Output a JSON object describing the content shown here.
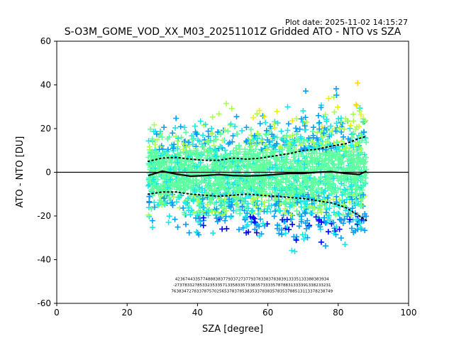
{
  "header": {
    "plot_date": "Plot date: 2025-11-02 14:15:27",
    "title": "S-O3M_GOME_VOD_XX_M03_20251101Z Gridded ATO - NTO vs SZA"
  },
  "chart_data": {
    "type": "scatter",
    "title": "S-O3M_GOME_VOD_XX_M03_20251101Z Gridded ATO - NTO vs SZA",
    "xlabel": "SZA [degree]",
    "ylabel": "ATO - NTO [DU]",
    "xlim": [
      0,
      100
    ],
    "ylim": [
      -60,
      60
    ],
    "xticks": [
      0,
      20,
      40,
      60,
      80,
      100
    ],
    "yticks": [
      -60,
      -40,
      -20,
      0,
      20,
      40,
      60
    ],
    "zero_line": 0,
    "sza_range": [
      26,
      88
    ],
    "colors": [
      "#0000ff",
      "#0a9cf0",
      "#19e6e6",
      "#5effa0",
      "#a8ff50",
      "#f0f000",
      "#ffd700"
    ],
    "series": [
      {
        "name": "median",
        "style": "solid",
        "x": [
          26,
          30,
          34,
          38,
          42,
          46,
          50,
          54,
          58,
          62,
          66,
          70,
          74,
          78,
          82,
          86,
          88
        ],
        "y": [
          -1.5,
          0.5,
          -0.8,
          -1.8,
          -1.5,
          -1.0,
          -1.5,
          -1.7,
          -1.5,
          -1.0,
          -0.5,
          -0.5,
          0,
          0.3,
          -0.5,
          -1.0,
          0.5
        ]
      },
      {
        "name": "upper",
        "style": "dotted",
        "x": [
          26,
          30,
          34,
          38,
          42,
          46,
          50,
          54,
          58,
          62,
          66,
          70,
          74,
          78,
          82,
          86,
          88
        ],
        "y": [
          5.0,
          6.5,
          6.8,
          6.0,
          5.5,
          5.5,
          6.5,
          6.0,
          6.5,
          7.5,
          8.5,
          10.0,
          10.5,
          12.0,
          13.0,
          15.5,
          16.5
        ]
      },
      {
        "name": "lower",
        "style": "dotted",
        "x": [
          26,
          30,
          34,
          38,
          42,
          46,
          50,
          54,
          58,
          62,
          66,
          70,
          74,
          78,
          82,
          86,
          88
        ],
        "y": [
          -10.0,
          -9.0,
          -9.0,
          -10.0,
          -10.5,
          -11.0,
          -10.5,
          -10.0,
          -10.5,
          -11.0,
          -11.5,
          -12.0,
          -13.0,
          -14.0,
          -16.0,
          -20.0,
          -22.0
        ]
      }
    ],
    "annotations": [
      "4236744335774888383779337273779378338378383913335133388383934",
      "-27378332785332353357133583357338357333357878831333391338233231",
      "7638347278337875702565378378538353378383578353788513113378238749"
    ]
  }
}
